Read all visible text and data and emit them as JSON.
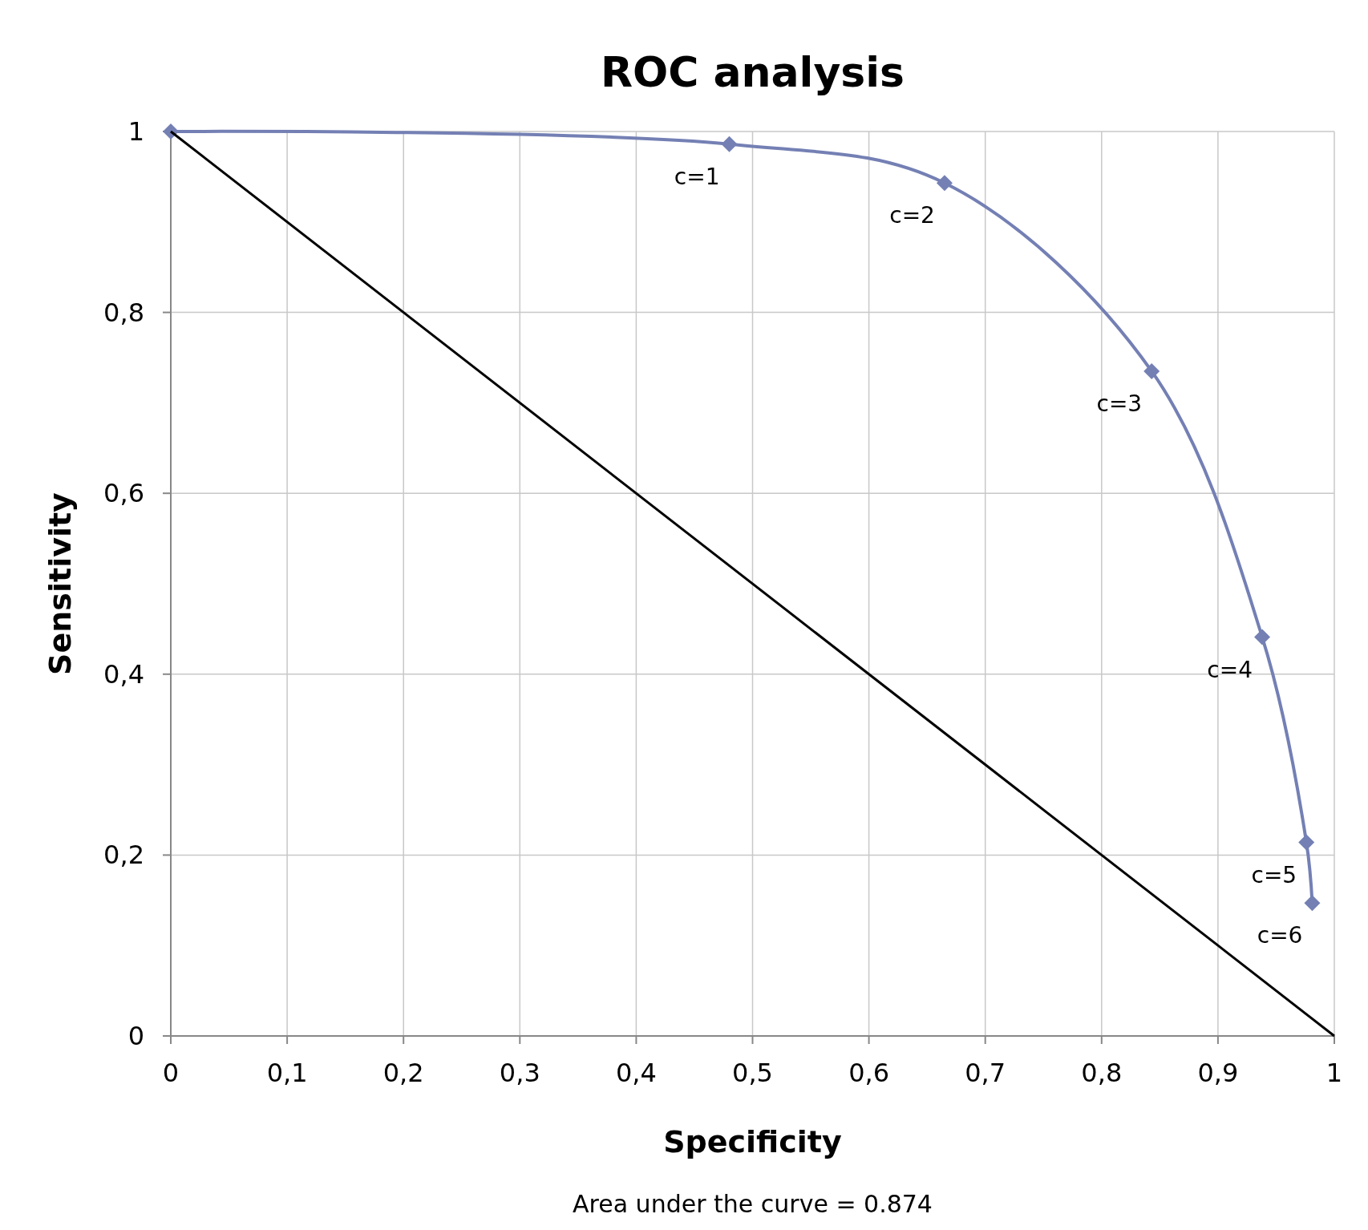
{
  "chart_data": {
    "type": "line",
    "title": "ROC analysis",
    "xlabel": "Specificity",
    "ylabel": "Sensitivity",
    "xlim": [
      0,
      1
    ],
    "ylim": [
      0,
      1
    ],
    "xticks": [
      0,
      {
        "value": 0.1,
        "label": "0,1"
      },
      {
        "value": 0.2,
        "label": "0,2"
      },
      {
        "value": 0.3,
        "label": "0,3"
      },
      {
        "value": 0.4,
        "label": "0,4"
      },
      {
        "value": 0.5,
        "label": "0,5"
      },
      {
        "value": 0.6,
        "label": "0,6"
      },
      {
        "value": 0.7,
        "label": "0,7"
      },
      {
        "value": 0.8,
        "label": "0,8"
      },
      {
        "value": 0.9,
        "label": "0,9"
      },
      1
    ],
    "yticks": [
      0,
      {
        "value": 0.2,
        "label": "0,2"
      },
      {
        "value": 0.4,
        "label": "0,4"
      },
      {
        "value": 0.6,
        "label": "0,6"
      },
      {
        "value": 0.8,
        "label": "0,8"
      },
      1
    ],
    "grid": true,
    "marker": "diamond",
    "series": [
      {
        "color": "#7480b4",
        "x": [
          0,
          0.48,
          0.665,
          0.843,
          0.938,
          0.976,
          0.981
        ],
        "values": [
          1,
          0.986,
          0.943,
          0.735,
          0.441,
          0.214,
          0.147
        ]
      },
      {
        "color": "#000000",
        "x": [
          0,
          1
        ],
        "values": [
          1,
          0
        ],
        "marker": "none"
      }
    ],
    "annotations": [
      {
        "text": "c=1",
        "x": 0.48,
        "y": 0.986
      },
      {
        "text": "c=2",
        "x": 0.665,
        "y": 0.943
      },
      {
        "text": "c=3",
        "x": 0.843,
        "y": 0.735
      },
      {
        "text": "c=4",
        "x": 0.938,
        "y": 0.441
      },
      {
        "text": "c=5",
        "x": 0.976,
        "y": 0.214
      },
      {
        "text": "c=6",
        "x": 0.981,
        "y": 0.147
      },
      "Area under the curve = 0.874"
    ]
  }
}
